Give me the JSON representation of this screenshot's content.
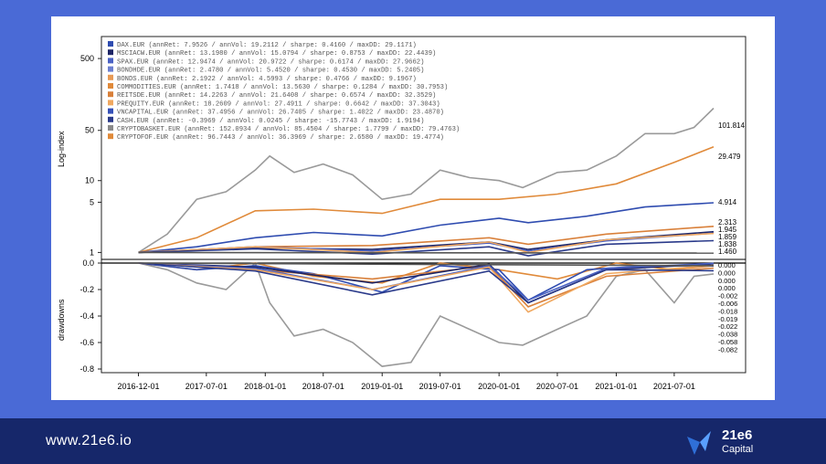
{
  "footer": {
    "url": "www.21e6.io",
    "brand_name": "21e6",
    "brand_sub": "Capital"
  },
  "colors": {
    "band_top": "#4a6ad6",
    "band_bottom": "#16276a",
    "grey": "#9a9a9a",
    "orange": "#e08a3a",
    "blue": "#2f4cb0",
    "navy": "#1d2566"
  },
  "chart_data": {
    "type": "line",
    "title": "",
    "x_ticks": [
      "2016-12-01",
      "2017-07-01",
      "2018-01-01",
      "2018-07-01",
      "2019-01-01",
      "2019-07-01",
      "2020-01-01",
      "2020-07-01",
      "2021-01-01",
      "2021-07-01"
    ],
    "x_range": [
      "2016-11-01",
      "2021-11-01"
    ],
    "upper": {
      "ylabel": "Log-index",
      "scale": "log",
      "ylim": [
        0.9,
        900
      ],
      "yticks": [
        "1",
        "5",
        "10",
        "50",
        "500"
      ],
      "end_labels": [
        "101.814",
        "29.479",
        "4.914",
        "2.313",
        "1.945",
        "1.859",
        "1.838",
        "1.460"
      ]
    },
    "lower": {
      "ylabel": "drawdowns",
      "ylim": [
        -0.8,
        0.0
      ],
      "yticks": [
        "0.0",
        "-0.2",
        "-0.4",
        "-0.6",
        "-0.8"
      ],
      "end_labels": [
        "0.000",
        "0.000",
        "0.000",
        "0.000",
        "-0.002",
        "-0.006",
        "-0.018",
        "-0.019",
        "-0.022",
        "-0.038",
        "-0.058",
        "-0.082"
      ]
    },
    "legend": [
      {
        "name": "DAX.EUR",
        "annRet": "7.9526",
        "annVol": "19.2112",
        "sharpe": "0.4160",
        "maxDD": "29.1171",
        "color": "#2f4cb0"
      },
      {
        "name": "MSCIACW.EUR",
        "annRet": "13.1980",
        "annVol": "15.0794",
        "sharpe": "0.8753",
        "maxDD": "22.4439",
        "color": "#1d2566"
      },
      {
        "name": "SPAX.EUR",
        "annRet": "12.9474",
        "annVol": "20.9722",
        "sharpe": "0.6174",
        "maxDD": "27.9662",
        "color": "#4a62c4"
      },
      {
        "name": "BONDHDE.EUR",
        "annRet": "2.4780",
        "annVol": "5.4520",
        "sharpe": "0.4530",
        "maxDD": "5.2405",
        "color": "#6c7fd0"
      },
      {
        "name": "BONDS.EUR",
        "annRet": "2.1922",
        "annVol": "4.5993",
        "sharpe": "0.4766",
        "maxDD": "9.1967",
        "color": "#e89a55"
      },
      {
        "name": "COMMODITIES.EUR",
        "annRet": "1.7418",
        "annVol": "13.5630",
        "sharpe": "0.1284",
        "maxDD": "30.7953",
        "color": "#e08a3a"
      },
      {
        "name": "REITSDE.EUR",
        "annRet": "14.2263",
        "annVol": "21.6408",
        "sharpe": "0.6574",
        "maxDD": "32.3529",
        "color": "#d9803a"
      },
      {
        "name": "PREQUITY.EUR",
        "annRet": "18.2609",
        "annVol": "27.4911",
        "sharpe": "0.6642",
        "maxDD": "37.3043",
        "color": "#f0a860"
      },
      {
        "name": "VNCAPITAL.EUR",
        "annRet": "37.4956",
        "annVol": "26.7405",
        "sharpe": "1.4022",
        "maxDD": "23.4870",
        "color": "#3550b8"
      },
      {
        "name": "CASH.EUR",
        "annRet": "-0.3969",
        "annVol": "0.0245",
        "sharpe": "-15.7743",
        "maxDD": "1.9194",
        "color": "#2a3a8a"
      },
      {
        "name": "CRYPTOBASKET.EUR",
        "annRet": "152.0934",
        "annVol": "85.4504",
        "sharpe": "1.7799",
        "maxDD": "79.4763",
        "color": "#8a8a8a"
      },
      {
        "name": "CRYPTOFOF.EUR",
        "annRet": "96.7443",
        "annVol": "36.3969",
        "sharpe": "2.6580",
        "maxDD": "19.4774",
        "color": "#e08a3a"
      }
    ],
    "series": [
      {
        "name": "CRYPTOBASKET.EUR",
        "color": "#9a9a9a",
        "x": [
          "2016-12-01",
          "2017-03-01",
          "2017-06-01",
          "2017-09-01",
          "2017-12-01",
          "2018-01-15",
          "2018-04-01",
          "2018-07-01",
          "2018-10-01",
          "2019-01-01",
          "2019-04-01",
          "2019-07-01",
          "2019-10-01",
          "2020-01-01",
          "2020-03-15",
          "2020-07-01",
          "2020-10-01",
          "2021-01-01",
          "2021-04-01",
          "2021-07-01",
          "2021-09-01",
          "2021-11-01"
        ],
        "y": [
          1.0,
          1.8,
          5.5,
          7.0,
          14,
          22,
          13,
          17,
          12,
          5.5,
          6.5,
          14,
          11,
          10,
          8,
          13,
          14,
          22,
          45,
          45,
          55,
          101.814
        ],
        "dd": [
          0,
          -0.05,
          -0.15,
          -0.2,
          0,
          -0.3,
          -0.55,
          -0.5,
          -0.6,
          -0.78,
          -0.75,
          -0.4,
          -0.5,
          -0.6,
          -0.62,
          -0.5,
          -0.4,
          -0.1,
          -0.05,
          -0.3,
          -0.1,
          -0.082
        ]
      },
      {
        "name": "CRYPTOFOF.EUR",
        "color": "#e08a3a",
        "x": [
          "2016-12-01",
          "2017-06-01",
          "2017-12-01",
          "2018-06-01",
          "2019-01-01",
          "2019-07-01",
          "2020-01-01",
          "2020-07-01",
          "2021-01-01",
          "2021-07-01",
          "2021-11-01"
        ],
        "y": [
          1.0,
          1.6,
          3.8,
          4.0,
          3.5,
          5.5,
          5.5,
          6.5,
          9,
          18,
          29.479
        ],
        "dd": [
          0,
          -0.05,
          0,
          -0.1,
          -0.15,
          0,
          -0.05,
          -0.12,
          0,
          -0.05,
          -0.019
        ]
      },
      {
        "name": "VNCAPITAL.EUR",
        "color": "#2f4cb0",
        "x": [
          "2016-12-01",
          "2017-06-01",
          "2017-12-01",
          "2018-06-01",
          "2019-01-01",
          "2019-07-01",
          "2020-01-01",
          "2020-04-01",
          "2020-10-01",
          "2021-04-01",
          "2021-11-01"
        ],
        "y": [
          1.0,
          1.2,
          1.6,
          1.9,
          1.7,
          2.4,
          3.0,
          2.6,
          3.2,
          4.3,
          4.914
        ],
        "dd": [
          0,
          -0.05,
          -0.02,
          -0.08,
          -0.22,
          -0.02,
          -0.05,
          -0.28,
          -0.05,
          -0.02,
          -0.022
        ]
      },
      {
        "name": "REITSDE.EUR",
        "color": "#d9803a",
        "x": [
          "2016-12-01",
          "2017-12-01",
          "2018-12-01",
          "2019-12-01",
          "2020-04-01",
          "2020-12-01",
          "2021-11-01"
        ],
        "y": [
          1.0,
          1.2,
          1.25,
          1.6,
          1.3,
          1.8,
          2.313
        ],
        "dd": [
          0,
          -0.05,
          -0.12,
          -0.02,
          -0.33,
          -0.1,
          -0.038
        ]
      },
      {
        "name": "MSCIACW.EUR",
        "color": "#1d2566",
        "x": [
          "2016-12-01",
          "2017-12-01",
          "2018-12-01",
          "2019-12-01",
          "2020-04-01",
          "2020-12-01",
          "2021-11-01"
        ],
        "y": [
          1.0,
          1.15,
          1.1,
          1.4,
          1.1,
          1.5,
          1.945
        ],
        "dd": [
          0,
          -0.03,
          -0.15,
          -0.01,
          -0.3,
          -0.05,
          -0.006
        ]
      },
      {
        "name": "SPAX.EUR",
        "color": "#4a62c4",
        "x": [
          "2016-12-01",
          "2017-12-01",
          "2018-12-01",
          "2019-12-01",
          "2020-04-01",
          "2020-12-01",
          "2021-11-01"
        ],
        "y": [
          1.0,
          1.2,
          1.05,
          1.35,
          1.05,
          1.45,
          1.859
        ],
        "dd": [
          0,
          -0.04,
          -0.2,
          -0.02,
          -0.28,
          -0.04,
          -0.002
        ]
      },
      {
        "name": "PREQUITY.EUR",
        "color": "#f0a860",
        "x": [
          "2016-12-01",
          "2017-12-01",
          "2018-12-01",
          "2019-12-01",
          "2020-04-01",
          "2020-12-01",
          "2021-11-01"
        ],
        "y": [
          1.0,
          1.2,
          1.0,
          1.4,
          1.0,
          1.5,
          1.838
        ],
        "dd": [
          0,
          -0.05,
          -0.2,
          -0.03,
          -0.37,
          -0.08,
          -0.018
        ]
      },
      {
        "name": "DAX.EUR",
        "color": "#2a3a8a",
        "x": [
          "2016-12-01",
          "2017-12-01",
          "2018-12-01",
          "2019-12-01",
          "2020-04-01",
          "2020-12-01",
          "2021-11-01"
        ],
        "y": [
          1.0,
          1.12,
          0.95,
          1.2,
          0.9,
          1.3,
          1.46
        ],
        "dd": [
          0,
          -0.06,
          -0.24,
          -0.06,
          -0.3,
          -0.05,
          -0.058
        ]
      },
      {
        "name": "CASH.EUR",
        "color": "#555555",
        "x": [
          "2016-12-01",
          "2021-11-01"
        ],
        "y": [
          1.0,
          0.98
        ],
        "dd": [
          0,
          -0.02
        ]
      }
    ]
  }
}
